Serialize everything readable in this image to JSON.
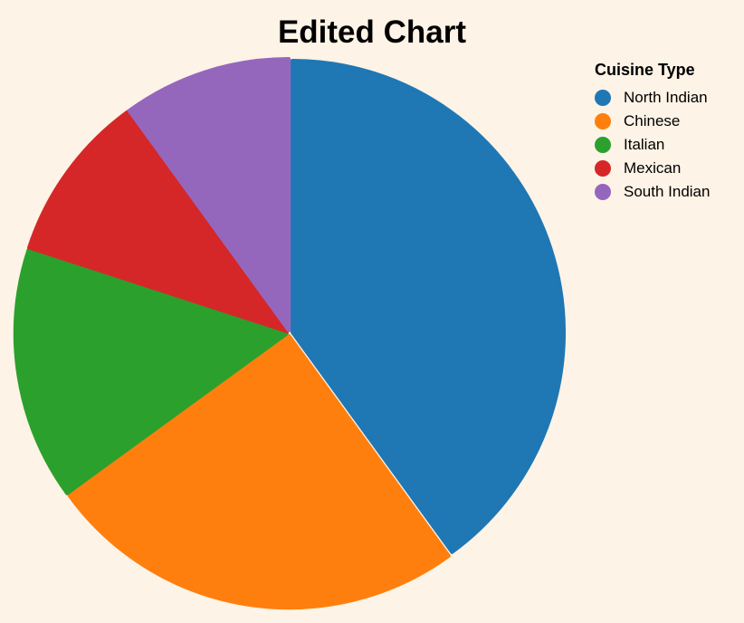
{
  "chart_data": {
    "type": "pie",
    "title": "Edited Chart",
    "legend": {
      "title": "Cuisine Type",
      "placement": "top-right"
    },
    "categories": [
      "North Indian",
      "Chinese",
      "Italian",
      "Mexican",
      "South Indian"
    ],
    "values": [
      40,
      25,
      15,
      10,
      10
    ],
    "colors": [
      "#1f77b4",
      "#ff7f0e",
      "#2ca02c",
      "#d62728",
      "#9467bd"
    ]
  }
}
